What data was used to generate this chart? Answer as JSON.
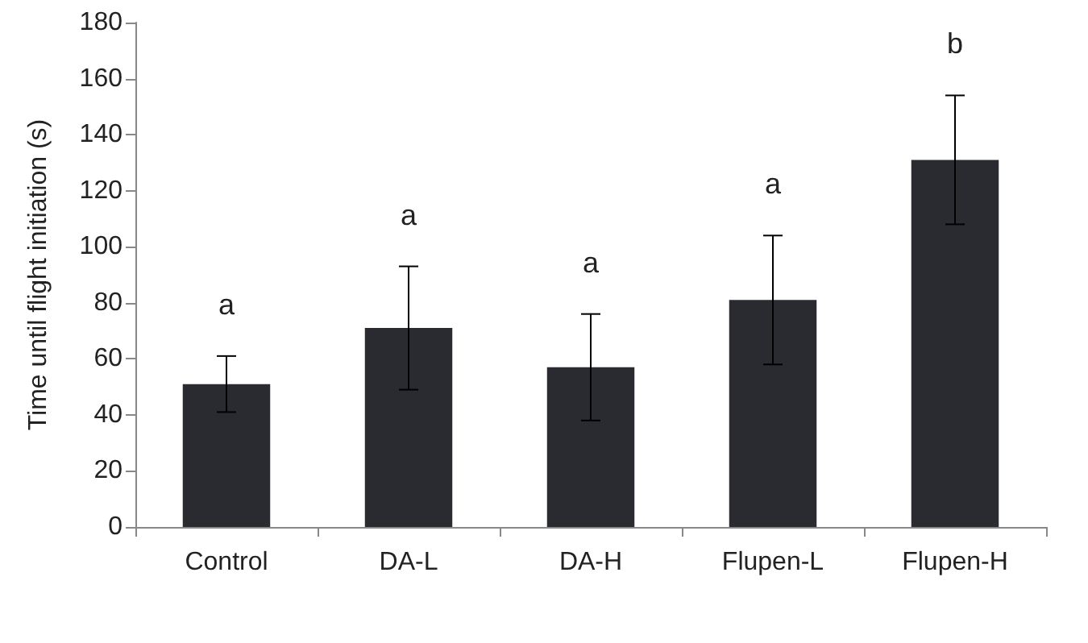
{
  "chart_data": {
    "type": "bar",
    "ylabel": "Time until flight initiation (s)",
    "categories": [
      "Control",
      "DA-L",
      "DA-H",
      "Flupen-L",
      "Flupen-H"
    ],
    "values": [
      51,
      71,
      57,
      81,
      131
    ],
    "errors": [
      10,
      22,
      19,
      23,
      23
    ],
    "color": "#2a2b30",
    "ylim": [
      0,
      180
    ],
    "yticks": [
      0,
      20,
      40,
      60,
      80,
      100,
      120,
      140,
      160,
      180
    ],
    "grid": false,
    "annotations": [
      "a",
      "a",
      "a",
      "a",
      "b"
    ]
  }
}
